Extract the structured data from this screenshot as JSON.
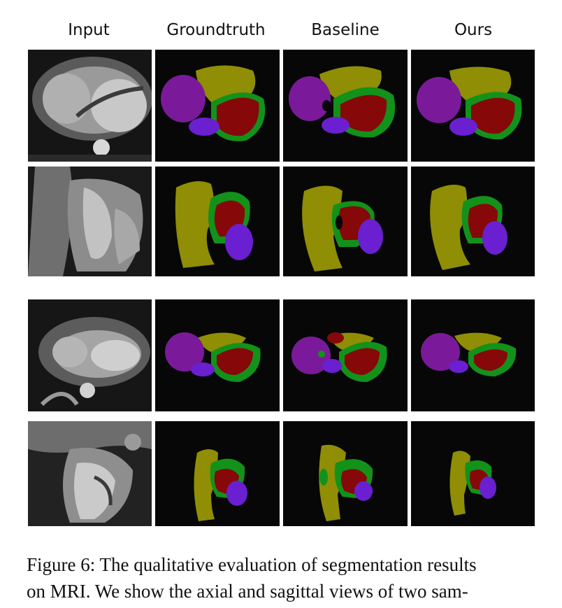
{
  "figure": {
    "columns": [
      "Input",
      "Groundtruth",
      "Baseline",
      "Ours"
    ],
    "caption_line1": "Figure 6: The qualitative evaluation of segmentation results",
    "caption_line2": "on MRI. We show the axial and sagittal views of two sam-"
  },
  "colors": {
    "background": "#070707",
    "olive": "#8f8e05",
    "purple": "#7a1a9a",
    "violet": "#6a1fd0",
    "dark_red": "#860808",
    "green": "#12921a"
  }
}
